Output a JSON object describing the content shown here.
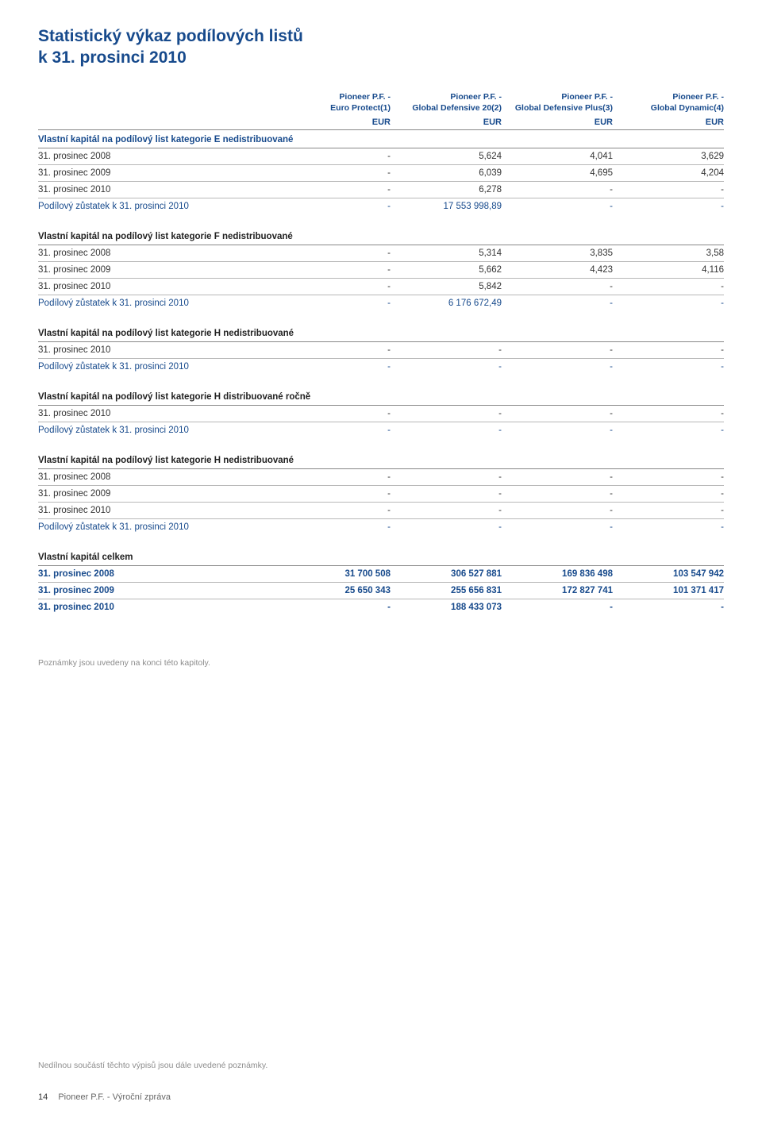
{
  "title_line1": "Statistický výkaz podílových listů",
  "title_line2": "k 31. prosinci 2010",
  "columns": [
    "Pioneer P.F. -\nEuro Protect(1)",
    "Pioneer P.F. -\nGlobal Defensive 20(2)",
    "Pioneer P.F. -\nGlobal Defensive Plus(3)",
    "Pioneer P.F. -\nGlobal Dynamic(4)"
  ],
  "currency": "EUR",
  "sections": [
    {
      "heading": "Vlastní kapitál na podílový list kategorie E nedistribuované",
      "head_style": "blue",
      "rows": [
        {
          "label": "31. prosinec 2008",
          "vals": [
            "-",
            "5,624",
            "4,041",
            "3,629"
          ],
          "style": ""
        },
        {
          "label": "31. prosinec 2009",
          "vals": [
            "-",
            "6,039",
            "4,695",
            "4,204"
          ],
          "style": ""
        },
        {
          "label": "31. prosinec 2010",
          "vals": [
            "-",
            "6,278",
            "-",
            "-"
          ],
          "style": ""
        },
        {
          "label": "Podílový zůstatek k 31. prosinci 2010",
          "vals": [
            "-",
            "17 553 998,89",
            "-",
            "-"
          ],
          "style": "blue",
          "last": true
        }
      ]
    },
    {
      "heading": "Vlastní kapitál na podílový list kategorie F nedistribuované",
      "head_style": "black-bold",
      "rows": [
        {
          "label": "31. prosinec 2008",
          "vals": [
            "-",
            "5,314",
            "3,835",
            "3,58"
          ],
          "style": ""
        },
        {
          "label": "31. prosinec 2009",
          "vals": [
            "-",
            "5,662",
            "4,423",
            "4,116"
          ],
          "style": ""
        },
        {
          "label": "31. prosinec 2010",
          "vals": [
            "-",
            "5,842",
            "-",
            "-"
          ],
          "style": ""
        },
        {
          "label": "Podílový zůstatek k 31. prosinci 2010",
          "vals": [
            "-",
            "6 176 672,49",
            "-",
            "-"
          ],
          "style": "blue",
          "last": true
        }
      ]
    },
    {
      "heading": "Vlastní kapitál na podílový list kategorie H nedistribuované",
      "head_style": "black-bold",
      "rows": [
        {
          "label": "31. prosinec 2010",
          "vals": [
            "-",
            "-",
            "-",
            "-"
          ],
          "style": ""
        },
        {
          "label": "Podílový zůstatek k 31. prosinci 2010",
          "vals": [
            "-",
            "-",
            "-",
            "-"
          ],
          "style": "blue",
          "last": true
        }
      ]
    },
    {
      "heading": "Vlastní kapitál na podílový list kategorie H distribuované ročně",
      "head_style": "black-bold",
      "rows": [
        {
          "label": "31. prosinec 2010",
          "vals": [
            "-",
            "-",
            "-",
            "-"
          ],
          "style": ""
        },
        {
          "label": "Podílový zůstatek k 31. prosinci 2010",
          "vals": [
            "-",
            "-",
            "-",
            "-"
          ],
          "style": "blue",
          "last": true
        }
      ]
    },
    {
      "heading": "Vlastní kapitál na podílový list kategorie H nedistribuované",
      "head_style": "black-bold",
      "rows": [
        {
          "label": "31. prosinec 2008",
          "vals": [
            "-",
            "-",
            "-",
            "-"
          ],
          "style": ""
        },
        {
          "label": "31. prosinec 2009",
          "vals": [
            "-",
            "-",
            "-",
            "-"
          ],
          "style": ""
        },
        {
          "label": "31. prosinec 2010",
          "vals": [
            "-",
            "-",
            "-",
            "-"
          ],
          "style": ""
        },
        {
          "label": "Podílový zůstatek k 31. prosinci 2010",
          "vals": [
            "-",
            "-",
            "-",
            "-"
          ],
          "style": "blue",
          "last": true
        }
      ]
    },
    {
      "heading": "Vlastní kapitál celkem",
      "head_style": "black",
      "rows": [
        {
          "label": "31. prosinec 2008",
          "vals": [
            "31 700 508",
            "306 527 881",
            "169 836 498",
            "103 547 942"
          ],
          "style": "blue bold"
        },
        {
          "label": "31. prosinec 2009",
          "vals": [
            "25 650 343",
            "255 656 831",
            "172 827 741",
            "101 371 417"
          ],
          "style": "blue bold"
        },
        {
          "label": "31. prosinec 2010",
          "vals": [
            "-",
            "188 433 073",
            "-",
            "-"
          ],
          "style": "blue bold",
          "last": true
        }
      ]
    }
  ],
  "footnote1": "Poznámky jsou uvedeny na konci této kapitoly.",
  "footnote2": "Nedílnou součástí těchto výpisů jsou dále uvedené poznámky.",
  "page_number": "14",
  "page_footer_text": "Pioneer P.F. - Výroční zpráva"
}
